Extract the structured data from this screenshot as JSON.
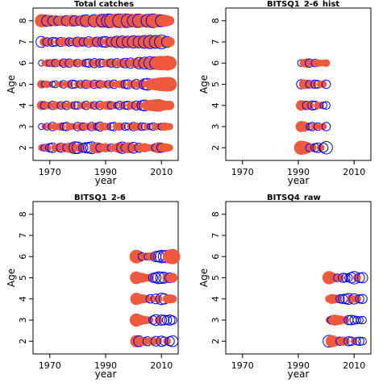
{
  "colors": {
    "positive": "#ef5a3f",
    "negative": "#0000ee",
    "frame": "#000000"
  },
  "chart_data": [
    {
      "type": "scatter",
      "title": "Total catches",
      "xlabel": "year",
      "ylabel": "Age",
      "xlim": [
        1964,
        2016
      ],
      "ylim": [
        1.4,
        8.6
      ],
      "xticks": [
        1970,
        1990,
        2010
      ],
      "yticks": [
        2,
        3,
        4,
        5,
        6,
        7,
        8
      ],
      "ages": [
        2,
        3,
        4,
        5,
        6,
        7,
        8
      ],
      "years": [
        1967,
        1968,
        1969,
        1970,
        1971,
        1972,
        1973,
        1974,
        1975,
        1976,
        1977,
        1978,
        1979,
        1980,
        1981,
        1982,
        1983,
        1984,
        1985,
        1986,
        1987,
        1988,
        1989,
        1990,
        1991,
        1992,
        1993,
        1994,
        1995,
        1996,
        1997,
        1998,
        1999,
        2000,
        2001,
        2002,
        2003,
        2004,
        2005,
        2006,
        2007,
        2008,
        2009,
        2010,
        2011,
        2012,
        2013
      ],
      "residuals": {
        "2": [
          0.3,
          -0.4,
          0.5,
          -0.6,
          -0.8,
          0.4,
          0.5,
          -0.7,
          0.6,
          -0.5,
          0.8,
          0.9,
          -1.2,
          -1.1,
          0.6,
          -0.7,
          -0.9,
          -1.0,
          -1.2,
          0.7,
          0.9,
          -0.6,
          0.5,
          0.6,
          0.4,
          -0.5,
          0.3,
          0.6,
          0.9,
          -1.1,
          -0.6,
          0.9,
          0.8,
          -1.0,
          0.4,
          -0.7,
          0.5,
          0.6,
          0.4,
          0.3,
          0.4,
          -0.6,
          0.9,
          -0.7,
          0.6,
          0.5,
          0.3
        ],
        "3": [
          -0.3,
          0.2,
          -0.4,
          0.3,
          -0.6,
          0.4,
          0.3,
          0.5,
          -0.5,
          -0.6,
          0.4,
          0.3,
          0.2,
          -0.6,
          0.5,
          -0.5,
          0.4,
          0.3,
          -0.6,
          0.5,
          -0.4,
          -0.7,
          0.5,
          0.4,
          0.3,
          -0.5,
          -0.6,
          0.4,
          0.5,
          0.3,
          -0.5,
          -0.4,
          0.4,
          -0.6,
          0.5,
          0.4,
          -0.5,
          -0.4,
          0.4,
          -0.3,
          -0.5,
          0.4,
          0.3,
          -0.4,
          0.5,
          0.4,
          0.3
        ],
        "4": [
          0.6,
          -0.5,
          0.4,
          0.3,
          -0.6,
          0.5,
          0.3,
          -0.5,
          0.4,
          -0.6,
          0.3,
          0.4,
          -0.5,
          -0.5,
          0.3,
          0.4,
          -0.6,
          0.3,
          0.4,
          -0.5,
          0.3,
          -0.6,
          0.4,
          0.5,
          0.6,
          -0.5,
          0.4,
          -0.3,
          -0.6,
          0.4,
          -0.5,
          -0.6,
          0.5,
          0.4,
          -0.7,
          0.5,
          -0.8,
          -1.0,
          0.8,
          0.9,
          1.0,
          1.1,
          1.2,
          0.9,
          0.7,
          0.6,
          0.6
        ],
        "5": [
          0.5,
          -0.3,
          0.4,
          0.2,
          -0.3,
          -0.4,
          0.2,
          0.3,
          -0.5,
          0.3,
          0.4,
          -0.6,
          -0.5,
          0.3,
          -0.5,
          0.4,
          -0.6,
          0.5,
          0.3,
          -0.6,
          0.5,
          -0.5,
          0.4,
          0.3,
          -0.5,
          0.4,
          -0.6,
          0.3,
          0.4,
          0.5,
          -0.6,
          -0.7,
          0.4,
          0.5,
          -0.8,
          0.5,
          0.6,
          -1.0,
          -1.2,
          0.8,
          1.0,
          1.1,
          1.3,
          1.4,
          1.5,
          1.6,
          1.5
        ],
        "6": [
          -0.3,
          0.2,
          0.4,
          -0.4,
          0.5,
          -0.5,
          0.3,
          0.4,
          -0.6,
          0.5,
          -0.6,
          0.3,
          0.4,
          -0.5,
          0.3,
          0.4,
          -0.5,
          -0.6,
          0.4,
          -0.7,
          0.5,
          -0.6,
          -0.5,
          0.4,
          0.5,
          -0.6,
          0.4,
          -0.7,
          0.5,
          0.6,
          -0.8,
          0.5,
          -0.9,
          0.6,
          0.7,
          -1.1,
          0.8,
          -1.2,
          0.9,
          -1.4,
          1.2,
          -1.3,
          1.5,
          1.6,
          1.5,
          1.7,
          1.4
        ],
        "7": [
          -1.0,
          0.6,
          -0.6,
          0.5,
          -0.7,
          -0.6,
          0.4,
          -0.7,
          0.6,
          0.5,
          -0.6,
          -0.5,
          0.6,
          -0.8,
          0.7,
          -0.6,
          0.5,
          -0.9,
          0.6,
          0.7,
          -0.8,
          0.6,
          -0.9,
          -1.0,
          0.7,
          -0.8,
          0.9,
          -1.1,
          1.0,
          -1.2,
          0.9,
          -1.1,
          1.1,
          -1.3,
          1.0,
          -1.2,
          1.2,
          -1.4,
          1.3,
          -1.5,
          1.2,
          -1.4,
          1.1,
          -1.6,
          0.9,
          -1.0,
          0.7
        ],
        "8": [
          1.3,
          1.2,
          -1.0,
          1.0,
          -0.8,
          0.9,
          -0.7,
          0.8,
          0.7,
          -0.9,
          0.8,
          1.0,
          -0.9,
          0.7,
          -0.8,
          1.1,
          -1.2,
          0.9,
          1.0,
          -1.3,
          1.2,
          1.3,
          -1.4,
          1.2,
          -1.6,
          -1.5,
          1.4,
          1.5,
          -1.6,
          1.3,
          1.7,
          -1.5,
          1.4,
          -1.3,
          1.6,
          -1.5,
          1.3,
          1.2,
          -1.4,
          1.5,
          -1.6,
          1.4,
          1.3,
          -1.2,
          1.1,
          0.9,
          0.6
        ]
      }
    },
    {
      "type": "scatter",
      "title": "BITSQ1_2-6_hist",
      "xlabel": "year",
      "ylabel": "Age",
      "xlim": [
        1964,
        2016
      ],
      "ylim": [
        1.4,
        8.6
      ],
      "xticks": [
        1970,
        1990,
        2010
      ],
      "yticks": [
        2,
        3,
        4,
        5,
        6,
        7,
        8
      ],
      "ages": [
        2,
        3,
        4,
        5,
        6
      ],
      "years": [
        1991,
        1992,
        1993,
        1994,
        1995,
        1996,
        1997,
        1998,
        1999,
        2000
      ],
      "residuals": {
        "2": [
          1.5,
          1.3,
          1.0,
          -0.5,
          0.5,
          -0.6,
          -0.8,
          0.4,
          -0.7,
          -1.3
        ],
        "3": [
          0.9,
          0.8,
          0.5,
          -0.4,
          -0.6,
          0.4,
          -0.5,
          0.3,
          0.3,
          -0.6
        ],
        "4": [
          0.8,
          0.6,
          -0.6,
          0.5,
          -0.7,
          -0.6,
          0.4,
          0.3,
          -0.4,
          -0.5
        ],
        "5": [
          -0.7,
          0.7,
          0.6,
          -0.5,
          0.5,
          -0.6,
          -0.5,
          0.4,
          0.3,
          -0.6
        ],
        "6": [
          -0.4,
          0.5,
          0.6,
          -0.6,
          0.4,
          -0.5,
          0.4,
          0.3,
          0.3,
          0.4
        ]
      }
    },
    {
      "type": "scatter",
      "title": "BITSQ1_2-6",
      "xlabel": "year",
      "ylabel": "Age",
      "xlim": [
        1964,
        2016
      ],
      "ylim": [
        1.4,
        8.6
      ],
      "xticks": [
        1970,
        1990,
        2010
      ],
      "yticks": [
        2,
        3,
        4,
        5,
        6,
        7,
        8
      ],
      "ages": [
        2,
        3,
        4,
        5,
        6
      ],
      "years": [
        2001,
        2002,
        2003,
        2004,
        2005,
        2006,
        2007,
        2008,
        2009,
        2010,
        2011,
        2012,
        2013,
        2014
      ],
      "residuals": {
        "2": [
          1.1,
          -1.0,
          0.6,
          0.5,
          -0.7,
          0.4,
          0.5,
          -0.8,
          0.3,
          -0.9,
          -0.6,
          0.4,
          -0.7,
          -1.0
        ],
        "3": [
          1.3,
          0.9,
          0.6,
          0.5,
          0.4,
          0.3,
          -0.6,
          -1.0,
          0.4,
          -0.9,
          -0.8,
          -0.7,
          -0.9,
          -0.6
        ],
        "4": [
          1.1,
          0.8,
          0.6,
          0.5,
          0.4,
          -0.6,
          0.3,
          -0.8,
          0.4,
          -1.1,
          -0.9,
          0.5,
          0.6,
          0.5
        ],
        "5": [
          1.2,
          0.8,
          0.7,
          0.5,
          0.4,
          0.3,
          -0.7,
          -0.9,
          -1.2,
          -1.1,
          -1.0,
          0.6,
          -0.8,
          0.7
        ],
        "6": [
          1.4,
          1.0,
          -0.5,
          0.4,
          -0.4,
          0.5,
          0.4,
          -0.9,
          -1.0,
          -1.3,
          -1.2,
          -1.3,
          1.5,
          1.8
        ]
      }
    },
    {
      "type": "scatter",
      "title": "BITSQ4_raw",
      "xlabel": "year",
      "ylabel": "Age",
      "xlim": [
        1964,
        2016
      ],
      "ylim": [
        1.4,
        8.6
      ],
      "xticks": [
        1970,
        1990,
        2010
      ],
      "yticks": [
        2,
        3,
        4,
        5,
        6,
        7,
        8
      ],
      "ages": [
        2,
        3,
        4,
        5
      ],
      "years": [
        2001,
        2002,
        2003,
        2004,
        2005,
        2006,
        2007,
        2008,
        2009,
        2010,
        2011,
        2012,
        2013
      ],
      "residuals": {
        "2": [
          -1.2,
          1.1,
          0.8,
          0.5,
          -0.6,
          0.6,
          0.4,
          -0.7,
          -0.6,
          0.3,
          -0.5,
          -0.6,
          -0.5
        ],
        "3": [
          0.3,
          -0.6,
          0.9,
          0.7,
          0.6,
          0.4,
          0.3,
          -0.7,
          -0.8,
          -0.6,
          -0.5,
          -0.4,
          -0.5
        ],
        "4": [
          0.4,
          0.7,
          0.6,
          0.5,
          -0.6,
          -0.7,
          -0.8,
          -1.0,
          0.5,
          -0.9,
          0.5,
          -0.6,
          -0.7
        ],
        "5": [
          1.3,
          0.9,
          0.5,
          -0.5,
          0.4,
          -0.7,
          -0.6,
          -0.5,
          -0.9,
          -1.3,
          0.4,
          -0.8,
          -0.9
        ]
      }
    }
  ]
}
